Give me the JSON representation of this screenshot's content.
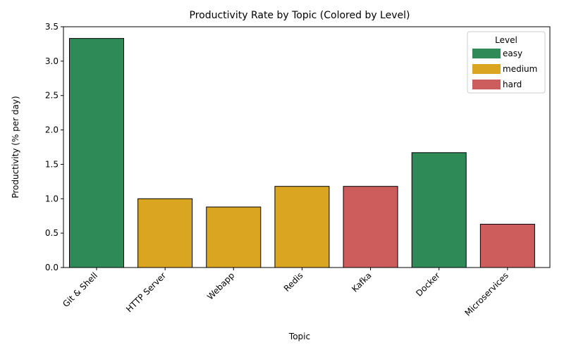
{
  "chart_data": {
    "type": "bar",
    "title": "Productivity Rate by Topic (Colored by Level)",
    "xlabel": "Topic",
    "ylabel": "Productivity (% per day)",
    "ylim": [
      0,
      3.5
    ],
    "yticks": [
      "0.0",
      "0.5",
      "1.0",
      "1.5",
      "2.0",
      "2.5",
      "3.0",
      "3.5"
    ],
    "categories": [
      "Git & Shell",
      "HTTP Server",
      "Webapp",
      "Redis",
      "Kafka",
      "Docker",
      "Microservices"
    ],
    "values": [
      3.33,
      1.0,
      0.88,
      1.18,
      1.18,
      1.67,
      0.63
    ],
    "levels": [
      "easy",
      "medium",
      "medium",
      "medium",
      "hard",
      "easy",
      "hard"
    ],
    "grid": false,
    "legend": {
      "title": "Level",
      "placement": "top-right",
      "entries": [
        {
          "label": "easy",
          "color": "#2e8b57"
        },
        {
          "label": "medium",
          "color": "#daa520"
        },
        {
          "label": "hard",
          "color": "#cd5c5c"
        }
      ]
    }
  }
}
